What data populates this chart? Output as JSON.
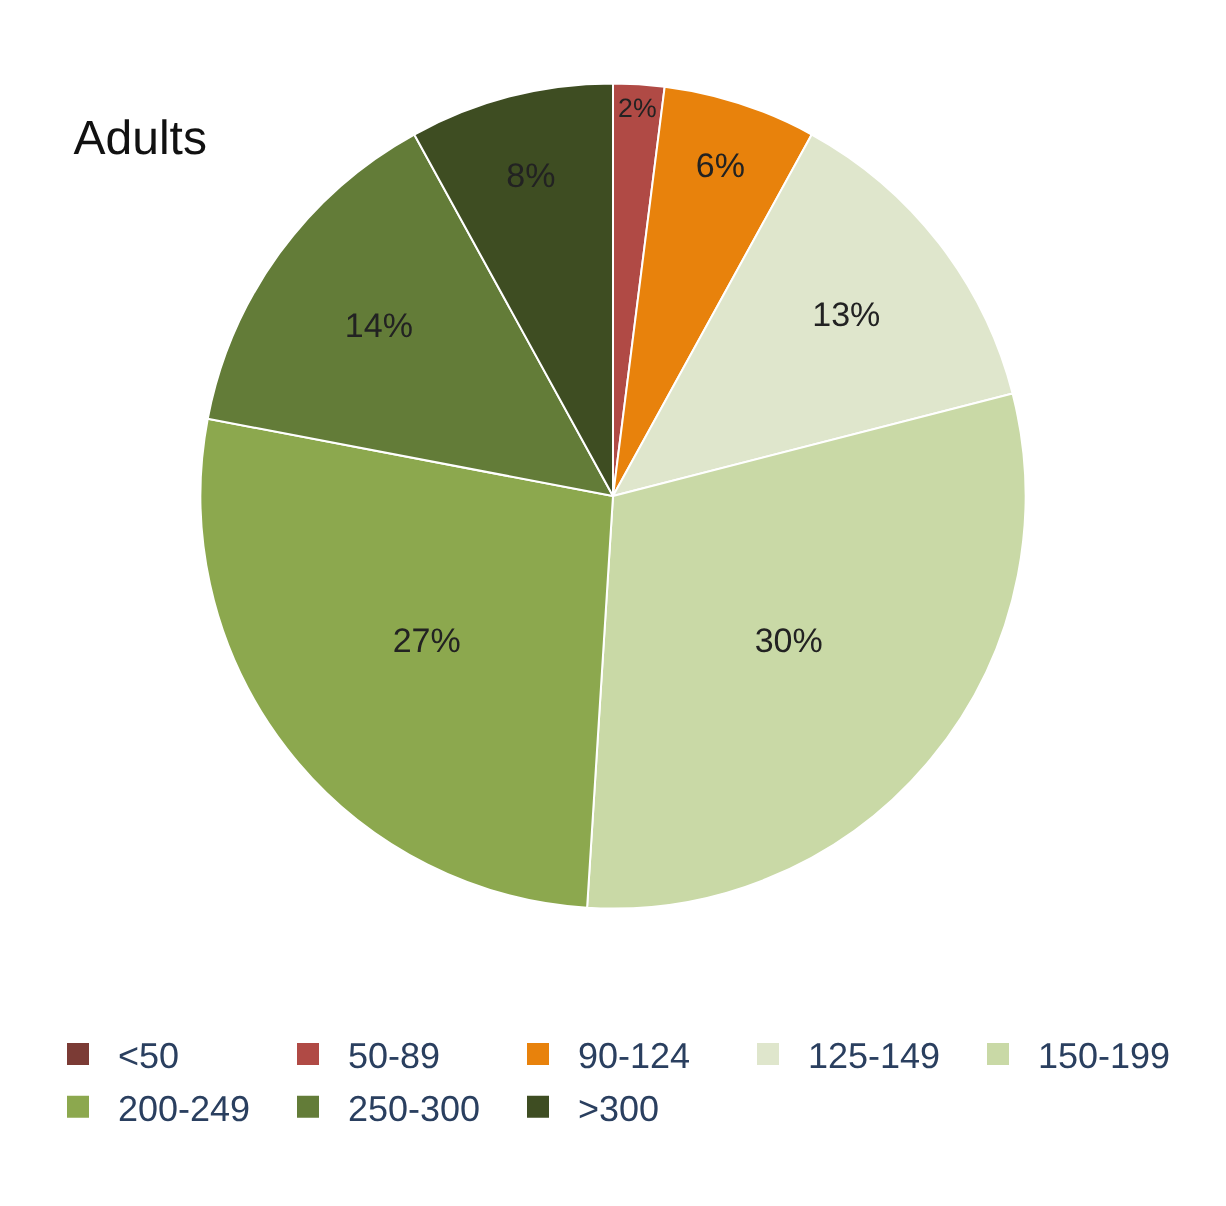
{
  "chart_data": {
    "type": "pie",
    "title": "Adults",
    "categories": [
      "<50",
      "50-89",
      "90-124",
      "125-149",
      "150-199",
      "200-249",
      "250-300",
      ">300"
    ],
    "values": [
      0,
      2,
      6,
      13,
      30,
      27,
      14,
      8
    ],
    "value_labels": [
      null,
      "2%",
      "6%",
      "13%",
      "30%",
      "27%",
      "14%",
      "8%"
    ],
    "colors": [
      "#7b3b35",
      "#b04a45",
      "#e8820c",
      "#dfe6cc",
      "#c9d9a6",
      "#8ca84e",
      "#637c38",
      "#3e4d22"
    ],
    "legend": "bottom"
  }
}
